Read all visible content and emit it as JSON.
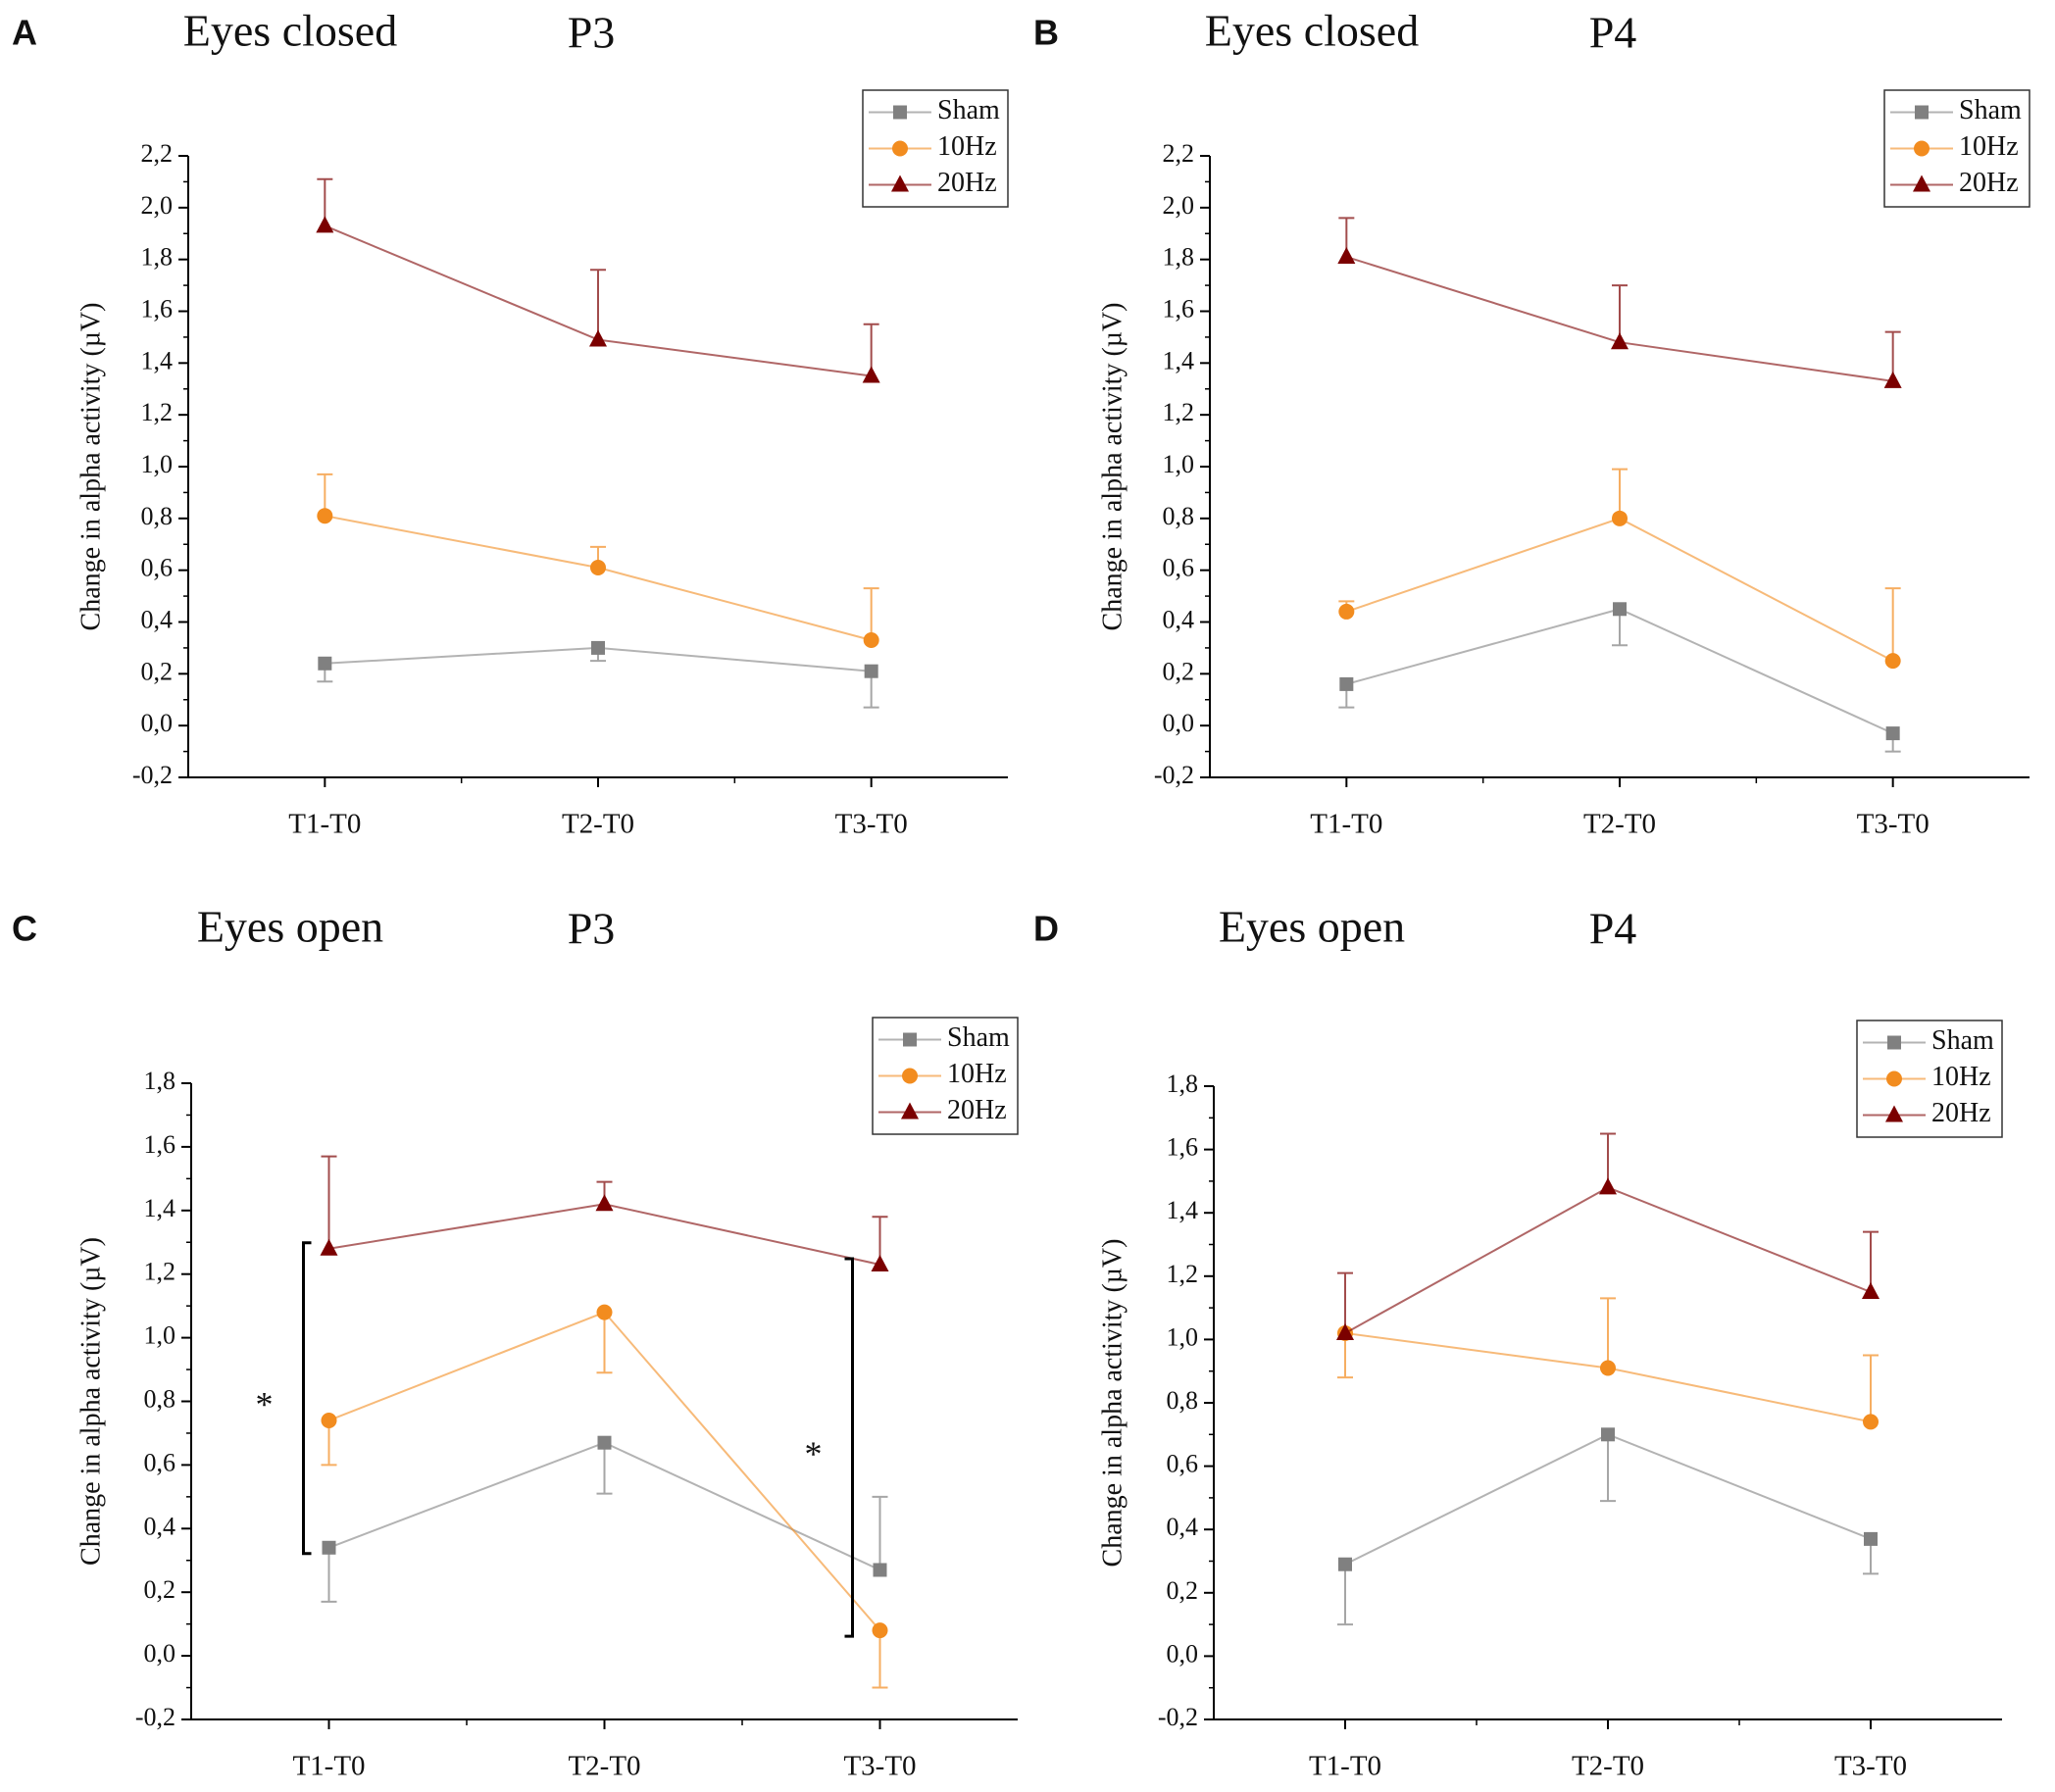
{
  "chart_data": [
    {
      "type": "line",
      "panel": "A",
      "title": "Eyes closed",
      "subtitle": "P3",
      "ylabel": "Change in alpha activity (µV)",
      "categories": [
        "T1-T0",
        "T2-T0",
        "T3-T0"
      ],
      "legend": "upper right",
      "ylim": [
        -0.2,
        2.2
      ],
      "yticks": [
        {
          "value": -0.2,
          "label": "-0,2"
        },
        {
          "value": 0,
          "label": "0,0"
        },
        {
          "value": 0.2,
          "label": "0,2"
        },
        {
          "value": 0.4,
          "label": "0,4"
        },
        {
          "value": 0.6,
          "label": "0,6"
        },
        {
          "value": 0.8,
          "label": "0,8"
        },
        {
          "value": 1,
          "label": "1,0"
        },
        {
          "value": 1.2,
          "label": "1,2"
        },
        {
          "value": 1.4,
          "label": "1,4"
        },
        {
          "value": 1.6,
          "label": "1,6"
        },
        {
          "value": 1.8,
          "label": "1,8"
        },
        {
          "value": 2,
          "label": "2,0"
        },
        {
          "value": 2.2,
          "label": "2,2"
        }
      ],
      "series": [
        {
          "name": "Sham",
          "color": "#808080",
          "marker": "square",
          "values": [
            0.24,
            0.3,
            0.21
          ],
          "errors": [
            0.07,
            0.05,
            0.14
          ],
          "error_side": [
            "down",
            "down",
            "down"
          ]
        },
        {
          "name": "10Hz",
          "color": "#f28c1f",
          "marker": "circle",
          "values": [
            0.81,
            0.61,
            0.33
          ],
          "errors": [
            0.16,
            0.08,
            0.2
          ],
          "error_side": [
            "up",
            "up",
            "up"
          ]
        },
        {
          "name": "20Hz",
          "color": "#7b0000",
          "marker": "triangle",
          "values": [
            1.93,
            1.49,
            1.35
          ],
          "errors": [
            0.18,
            0.27,
            0.2
          ],
          "error_side": [
            "up",
            "up",
            "up"
          ]
        }
      ]
    },
    {
      "type": "line",
      "panel": "B",
      "title": "Eyes closed",
      "subtitle": "P4",
      "ylabel": "Change in alpha activity (µV)",
      "categories": [
        "T1-T0",
        "T2-T0",
        "T3-T0"
      ],
      "legend": "upper right",
      "ylim": [
        -0.2,
        2.2
      ],
      "yticks": [
        {
          "value": -0.2,
          "label": "-0,2"
        },
        {
          "value": 0,
          "label": "0,0"
        },
        {
          "value": 0.2,
          "label": "0,2"
        },
        {
          "value": 0.4,
          "label": "0,4"
        },
        {
          "value": 0.6,
          "label": "0,6"
        },
        {
          "value": 0.8,
          "label": "0,8"
        },
        {
          "value": 1,
          "label": "1,0"
        },
        {
          "value": 1.2,
          "label": "1,2"
        },
        {
          "value": 1.4,
          "label": "1,4"
        },
        {
          "value": 1.6,
          "label": "1,6"
        },
        {
          "value": 1.8,
          "label": "1,8"
        },
        {
          "value": 2,
          "label": "2,0"
        },
        {
          "value": 2.2,
          "label": "2,2"
        }
      ],
      "series": [
        {
          "name": "Sham",
          "color": "#808080",
          "marker": "square",
          "values": [
            0.16,
            0.45,
            -0.03
          ],
          "errors": [
            0.09,
            0.14,
            0.07
          ],
          "error_side": [
            "down",
            "down",
            "down"
          ]
        },
        {
          "name": "10Hz",
          "color": "#f28c1f",
          "marker": "circle",
          "values": [
            0.44,
            0.8,
            0.25
          ],
          "errors": [
            0.04,
            0.19,
            0.28
          ],
          "error_side": [
            "up",
            "up",
            "up"
          ]
        },
        {
          "name": "20Hz",
          "color": "#7b0000",
          "marker": "triangle",
          "values": [
            1.81,
            1.48,
            1.33
          ],
          "errors": [
            0.15,
            0.22,
            0.19
          ],
          "error_side": [
            "up",
            "up",
            "up"
          ]
        }
      ]
    },
    {
      "type": "line",
      "panel": "C",
      "title": "Eyes open",
      "subtitle": "P3",
      "ylabel": "Change in alpha activity (µV)",
      "categories": [
        "T1-T0",
        "T2-T0",
        "T3-T0"
      ],
      "legend": "upper right",
      "ylim": [
        -0.2,
        1.8
      ],
      "yticks": [
        {
          "value": -0.2,
          "label": "-0,2"
        },
        {
          "value": 0,
          "label": "0,0"
        },
        {
          "value": 0.2,
          "label": "0,2"
        },
        {
          "value": 0.4,
          "label": "0,4"
        },
        {
          "value": 0.6,
          "label": "0,6"
        },
        {
          "value": 0.8,
          "label": "0,8"
        },
        {
          "value": 1,
          "label": "1,0"
        },
        {
          "value": 1.2,
          "label": "1,2"
        },
        {
          "value": 1.4,
          "label": "1,4"
        },
        {
          "value": 1.6,
          "label": "1,6"
        },
        {
          "value": 1.8,
          "label": "1,8"
        }
      ],
      "series": [
        {
          "name": "Sham",
          "color": "#808080",
          "marker": "square",
          "values": [
            0.34,
            0.67,
            0.27
          ],
          "errors": [
            0.17,
            0.16,
            0.23
          ],
          "error_side": [
            "down",
            "down",
            "up"
          ]
        },
        {
          "name": "10Hz",
          "color": "#f28c1f",
          "marker": "circle",
          "values": [
            0.74,
            1.08,
            0.08
          ],
          "errors": [
            0.14,
            0.19,
            0.18
          ],
          "error_side": [
            "down",
            "down",
            "down"
          ]
        },
        {
          "name": "20Hz",
          "color": "#7b0000",
          "marker": "triangle",
          "values": [
            1.28,
            1.42,
            1.23
          ],
          "errors": [
            0.29,
            0.07,
            0.15
          ],
          "error_side": [
            "up",
            "up",
            "up"
          ]
        }
      ],
      "annotations": [
        {
          "text": "*",
          "category": 0,
          "series": [
            0,
            2
          ]
        },
        {
          "text": "*",
          "category": 2,
          "series": [
            1,
            2
          ]
        }
      ]
    },
    {
      "type": "line",
      "panel": "D",
      "title": "Eyes open",
      "subtitle": "P4",
      "ylabel": "Change in alpha activity (µV)",
      "categories": [
        "T1-T0",
        "T2-T0",
        "T3-T0"
      ],
      "legend": "upper right",
      "ylim": [
        -0.2,
        1.8
      ],
      "yticks": [
        {
          "value": -0.2,
          "label": "-0,2"
        },
        {
          "value": 0,
          "label": "0,0"
        },
        {
          "value": 0.2,
          "label": "0,2"
        },
        {
          "value": 0.4,
          "label": "0,4"
        },
        {
          "value": 0.6,
          "label": "0,6"
        },
        {
          "value": 0.8,
          "label": "0,8"
        },
        {
          "value": 1,
          "label": "1,0"
        },
        {
          "value": 1.2,
          "label": "1,2"
        },
        {
          "value": 1.4,
          "label": "1,4"
        },
        {
          "value": 1.6,
          "label": "1,6"
        },
        {
          "value": 1.8,
          "label": "1,8"
        }
      ],
      "series": [
        {
          "name": "Sham",
          "color": "#808080",
          "marker": "square",
          "values": [
            0.29,
            0.7,
            0.37
          ],
          "errors": [
            0.19,
            0.21,
            0.11
          ],
          "error_side": [
            "down",
            "down",
            "down"
          ]
        },
        {
          "name": "10Hz",
          "color": "#f28c1f",
          "marker": "circle",
          "values": [
            1.02,
            0.91,
            0.74
          ],
          "errors": [
            0.14,
            0.22,
            0.21
          ],
          "error_side": [
            "down",
            "up",
            "up"
          ]
        },
        {
          "name": "20Hz",
          "color": "#7b0000",
          "marker": "triangle",
          "values": [
            1.02,
            1.48,
            1.15
          ],
          "errors": [
            0.19,
            0.17,
            0.19
          ],
          "error_side": [
            "up",
            "up",
            "up"
          ]
        }
      ]
    }
  ]
}
